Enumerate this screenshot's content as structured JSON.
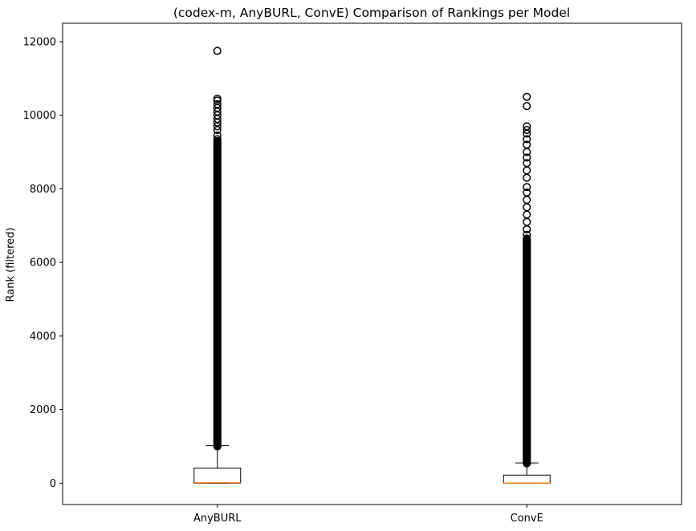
{
  "chart_data": {
    "type": "box",
    "title": "(codex-m, AnyBURL, ConvE) Comparison of Rankings per Model",
    "xlabel": "",
    "ylabel": "Rank (filtered)",
    "ylim": [
      -580,
      12500
    ],
    "yticks": [
      0,
      2000,
      4000,
      6000,
      8000,
      10000,
      12000
    ],
    "categories": [
      "AnyBURL",
      "ConvE"
    ],
    "grid": false,
    "legend": "none",
    "colors": {
      "box": "#000000",
      "median": "#ff7f0e",
      "flier_edge": "#000000"
    },
    "series": [
      {
        "category": "AnyBURL",
        "whisker_low": 1,
        "q1": 2,
        "median": 14,
        "q3": 410,
        "whisker_high": 1020,
        "flier_band": [
          1000,
          9300
        ],
        "outliers": [
          9350,
          9450,
          9600,
          9700,
          9800,
          9900,
          10000,
          10100,
          10200,
          10300,
          10400,
          10450,
          11750
        ]
      },
      {
        "category": "ConvE",
        "whisker_low": 1,
        "q1": 1,
        "median": 5,
        "q3": 220,
        "whisker_high": 550,
        "flier_band": [
          540,
          6650
        ],
        "outliers": [
          6750,
          6900,
          7100,
          7300,
          7500,
          7700,
          7900,
          8050,
          8300,
          8500,
          8700,
          8850,
          9000,
          9200,
          9350,
          9500,
          9600,
          9700,
          10250,
          10500
        ]
      }
    ]
  }
}
